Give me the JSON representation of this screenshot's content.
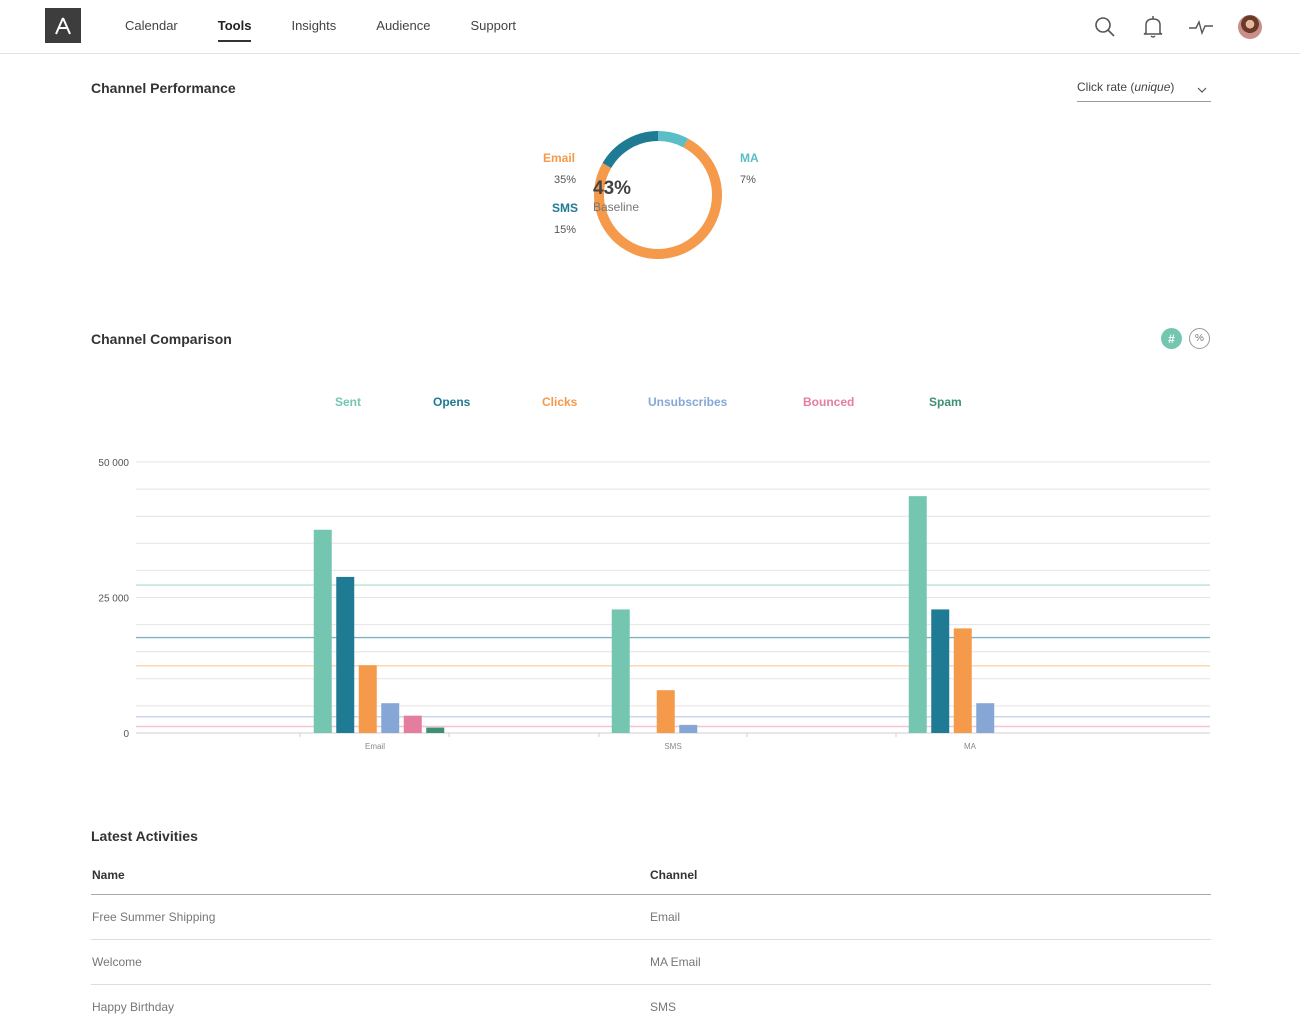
{
  "nav": {
    "items": [
      {
        "label": "Calendar",
        "active": false
      },
      {
        "label": "Tools",
        "active": true
      },
      {
        "label": "Insights",
        "active": false
      },
      {
        "label": "Audience",
        "active": false
      },
      {
        "label": "Support",
        "active": false
      }
    ],
    "icons": [
      "search-icon",
      "bell-icon",
      "activity-icon",
      "avatar"
    ]
  },
  "performance": {
    "title": "Channel Performance",
    "metric_select": {
      "label_prefix": "Click rate (",
      "label_em": "unique",
      "label_suffix": ")"
    },
    "center_value": "43%",
    "center_label": "Baseline",
    "channels": [
      {
        "name": "Email",
        "value": "35%",
        "color": "#f5994b"
      },
      {
        "name": "SMS",
        "value": "15%",
        "color": "#1f7a93"
      },
      {
        "name": "MA",
        "value": "7%",
        "color": "#5bbdc6"
      }
    ]
  },
  "comparison": {
    "title": "Channel Comparison",
    "toggles": {
      "count": "#",
      "percent": "%"
    },
    "legend": [
      {
        "name": "Sent",
        "color": "#74c6b1"
      },
      {
        "name": "Opens",
        "color": "#1f7a93"
      },
      {
        "name": "Clicks",
        "color": "#f5994b"
      },
      {
        "name": "Unsubscribes",
        "color": "#86a7d6"
      },
      {
        "name": "Bounced",
        "color": "#e57e9e"
      },
      {
        "name": "Spam",
        "color": "#3f8f73"
      }
    ]
  },
  "chart_data": {
    "type": "bar",
    "categories": [
      "Email",
      "SMS",
      "MA"
    ],
    "yticks": [
      "0",
      "25 000",
      "50 000"
    ],
    "ylim": [
      0,
      50000
    ],
    "grid": true,
    "series": [
      {
        "name": "Sent",
        "color": "#74c6b1",
        "values": [
          37500,
          22800,
          43700
        ]
      },
      {
        "name": "Opens",
        "color": "#1f7a93",
        "values": [
          28800,
          0,
          22800
        ]
      },
      {
        "name": "Clicks",
        "color": "#f5994b",
        "values": [
          12500,
          7900,
          19300
        ]
      },
      {
        "name": "Unsubscribes",
        "color": "#86a7d6",
        "values": [
          5500,
          1500,
          5500
        ]
      },
      {
        "name": "Bounced",
        "color": "#e57e9e",
        "values": [
          3200,
          0,
          0
        ]
      },
      {
        "name": "Spam",
        "color": "#3f8f73",
        "values": [
          1000,
          0,
          0
        ]
      }
    ],
    "reference_lines": [
      {
        "series": "Sent",
        "value": 27300,
        "color": "#b9e3d6"
      },
      {
        "series": "Opens",
        "value": 17600,
        "color": "#7eb3c2"
      },
      {
        "series": "Clicks",
        "value": 12400,
        "color": "#fbd3ad"
      },
      {
        "series": "Unsubscribes",
        "value": 3000,
        "color": "#c8d6ee"
      },
      {
        "series": "Bounced",
        "value": 1200,
        "color": "#f4c3d2"
      }
    ]
  },
  "activities": {
    "title": "Latest Activities",
    "columns": [
      "Name",
      "Channel"
    ],
    "rows": [
      {
        "name": "Free Summer Shipping",
        "channel": "Email"
      },
      {
        "name": "Welcome",
        "channel": "MA Email"
      },
      {
        "name": "Happy Birthday",
        "channel": "SMS"
      }
    ]
  }
}
